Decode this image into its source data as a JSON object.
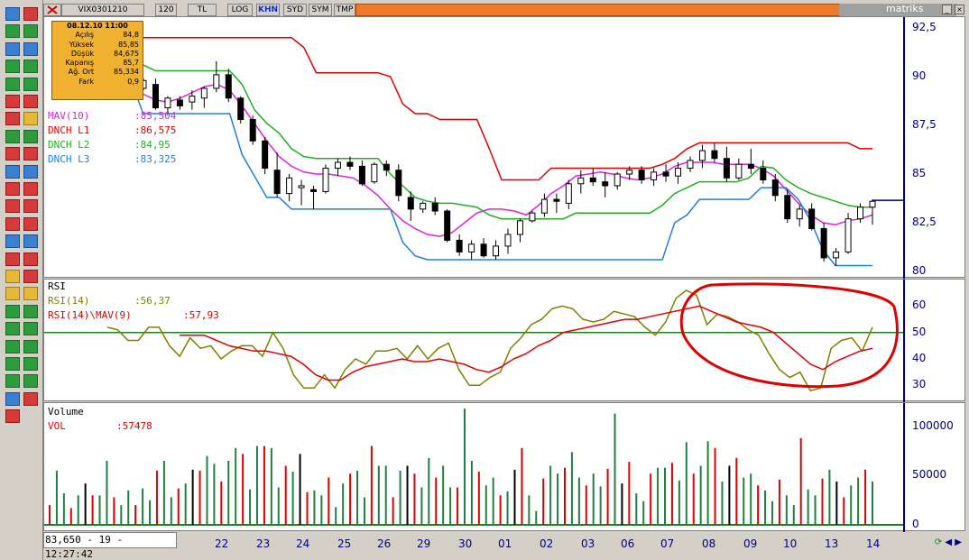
{
  "tabs": [
    {
      "label": "VIX0301210",
      "active": false
    },
    {
      "label": "120",
      "active": false
    },
    {
      "label": "TL",
      "active": false
    },
    {
      "label": "LOG",
      "active": false
    },
    {
      "label": "KHN",
      "active": true
    },
    {
      "label": "SYD",
      "active": false
    },
    {
      "label": "SYM",
      "active": false
    },
    {
      "label": "TMP",
      "active": false
    }
  ],
  "brand": "matriks",
  "info_box": {
    "datetime": "08.12.10 11:00",
    "rows": [
      {
        "label": "Açılış",
        "value": "84,8"
      },
      {
        "label": "Yüksek",
        "value": "85,85"
      },
      {
        "label": "Düşük",
        "value": "84,675"
      },
      {
        "label": "Kapanış",
        "value": "85,7"
      },
      {
        "label": "Ağ. Ort",
        "value": "85,334"
      },
      {
        "label": "Fark",
        "value": "0,9"
      }
    ]
  },
  "price_legend": [
    {
      "name": "MAV(10)",
      "value": ":85,504",
      "color": "#e020e0"
    },
    {
      "name": "DNCH L1",
      "value": ":86,575",
      "color": "#e00000"
    },
    {
      "name": "DNCH L2",
      "value": ":84,95",
      "color": "#20b020"
    },
    {
      "name": "DNCH L3",
      "value": ":83,325",
      "color": "#2080e0"
    }
  ],
  "price_axis": [
    "92,5",
    "90",
    "87,5",
    "85",
    "82,5",
    "80"
  ],
  "rsi_panel": {
    "title": "RSI",
    "legend": [
      {
        "name": "RSI(14)",
        "value": ":56,37",
        "color": "#808000"
      },
      {
        "name": "RSI(14)\\MAV(9)",
        "value": ":57,93",
        "color": "#e00000"
      }
    ],
    "axis": [
      "60",
      "50",
      "40",
      "30"
    ]
  },
  "volume_panel": {
    "title": "Volume",
    "legend": [
      {
        "name": "VOL",
        "value": ":57478",
        "color": "#e00000"
      }
    ],
    "axis": [
      "100000",
      "50000",
      "0"
    ]
  },
  "status_text": "83,650 - 19 - 12:27:42",
  "x_labels": [
    "22",
    "23",
    "24",
    "25",
    "26",
    "29",
    "30",
    "01",
    "02",
    "03",
    "06",
    "07",
    "08",
    "09",
    "10",
    "13",
    "14"
  ],
  "chart_data": [
    {
      "type": "candlestick",
      "title": "",
      "ylim": [
        80,
        93
      ],
      "series": [
        {
          "name": "MAV(10)",
          "values": [
            89.6,
            89.1,
            88.8,
            88.7,
            88.9,
            89.2,
            89.5,
            89.6,
            89.3,
            88.5,
            87.6,
            86.7,
            85.9,
            85.4,
            85.1,
            85.0,
            85.0,
            84.9,
            84.8,
            84.4,
            83.9,
            83.2,
            82.6,
            82.2,
            81.9,
            81.8,
            82.0,
            82.5,
            83.0,
            83.2,
            83.2,
            83.1,
            82.9,
            83.4,
            84.0,
            84.4,
            84.9,
            85.0,
            85.1,
            85.0,
            84.8,
            84.7,
            84.8,
            85.0,
            85.4,
            85.6,
            85.6,
            85.6,
            85.5,
            85.5,
            85.5,
            85.3,
            84.9,
            84.2,
            83.5,
            82.9,
            82.5,
            82.4,
            82.6,
            82.7,
            82.9
          ]
        },
        {
          "name": "DNCH L1",
          "values": [
            92.0,
            92.0,
            92.0,
            92.0,
            92.0,
            92.0,
            92.0,
            92.0,
            92.0,
            92.0,
            92.0,
            92.0,
            92.0,
            92.0,
            91.5,
            90.2,
            90.2,
            90.2,
            90.2,
            90.2,
            90.2,
            90.0,
            88.6,
            88.1,
            88.1,
            87.8,
            87.8,
            87.8,
            87.8,
            86.3,
            84.7,
            84.7,
            84.7,
            84.7,
            85.3,
            85.3,
            85.3,
            85.3,
            85.3,
            85.3,
            85.3,
            85.3,
            85.3,
            85.5,
            85.8,
            86.3,
            86.6,
            86.6,
            86.6,
            86.6,
            86.6,
            86.6,
            86.6,
            86.6,
            86.6,
            86.6,
            86.6,
            86.6,
            86.6,
            86.3,
            86.3
          ]
        },
        {
          "name": "DNCH L2",
          "values": [
            90.8,
            90.6,
            90.3,
            90.3,
            90.3,
            90.3,
            90.3,
            90.3,
            90.3,
            89.6,
            88.3,
            87.6,
            87.1,
            86.3,
            85.9,
            85.8,
            85.8,
            85.8,
            85.8,
            85.8,
            85.8,
            85.0,
            84.4,
            83.8,
            83.6,
            83.5,
            83.5,
            83.4,
            83.3,
            82.9,
            82.7,
            82.7,
            82.7,
            82.7,
            82.7,
            82.7,
            83.0,
            83.0,
            83.0,
            83.0,
            83.0,
            83.0,
            83.0,
            83.4,
            84.0,
            84.3,
            84.6,
            84.6,
            84.6,
            84.6,
            84.8,
            85.4,
            85.3,
            84.7,
            84.3,
            84.0,
            83.8,
            83.6,
            83.4,
            83.3,
            83.3
          ]
        },
        {
          "name": "DNCH L3",
          "values": [
            89.8,
            88.1,
            88.1,
            88.1,
            88.1,
            88.1,
            88.1,
            88.1,
            88.1,
            86.0,
            84.9,
            83.8,
            83.8,
            83.2,
            83.2,
            83.2,
            83.2,
            83.2,
            83.2,
            83.2,
            83.2,
            83.2,
            81.5,
            80.8,
            80.6,
            80.6,
            80.6,
            80.6,
            80.6,
            80.6,
            80.6,
            80.6,
            80.6,
            80.6,
            80.6,
            80.6,
            80.6,
            80.6,
            80.6,
            80.6,
            80.6,
            80.6,
            80.6,
            80.6,
            82.5,
            82.9,
            83.7,
            83.7,
            83.7,
            83.7,
            83.7,
            84.3,
            84.3,
            84.3,
            83.7,
            82.6,
            81.1,
            80.3,
            80.3,
            80.3,
            80.3
          ]
        }
      ],
      "candles": [
        [
          89.4,
          89.9,
          89.3,
          89.8
        ],
        [
          89.6,
          89.9,
          88.3,
          88.4
        ],
        [
          88.4,
          89.0,
          88.1,
          88.9
        ],
        [
          88.8,
          89.0,
          88.3,
          88.5
        ],
        [
          88.7,
          89.3,
          88.3,
          89.0
        ],
        [
          88.9,
          89.5,
          88.4,
          89.4
        ],
        [
          89.4,
          90.8,
          89.2,
          90.1
        ],
        [
          90.1,
          90.4,
          88.7,
          88.9
        ],
        [
          88.9,
          89.0,
          87.6,
          87.8
        ],
        [
          87.8,
          88.0,
          86.5,
          86.7
        ],
        [
          86.7,
          86.9,
          85.0,
          85.3
        ],
        [
          85.2,
          86.1,
          83.8,
          84.0
        ],
        [
          84.0,
          85.0,
          83.6,
          84.8
        ],
        [
          84.3,
          84.7,
          83.4,
          84.4
        ],
        [
          84.2,
          84.4,
          83.2,
          84.1
        ],
        [
          84.1,
          85.5,
          84.0,
          85.3
        ],
        [
          85.3,
          85.8,
          84.9,
          85.6
        ],
        [
          85.6,
          85.9,
          85.2,
          85.4
        ],
        [
          85.4,
          85.7,
          84.4,
          84.5
        ],
        [
          84.6,
          85.6,
          84.5,
          85.5
        ],
        [
          85.5,
          85.7,
          84.9,
          85.2
        ],
        [
          85.2,
          85.5,
          83.6,
          83.9
        ],
        [
          83.8,
          84.1,
          82.6,
          83.2
        ],
        [
          83.2,
          83.6,
          83.0,
          83.5
        ],
        [
          83.5,
          83.8,
          82.9,
          83.1
        ],
        [
          83.1,
          83.2,
          81.5,
          81.6
        ],
        [
          81.6,
          81.9,
          80.8,
          81.0
        ],
        [
          81.0,
          81.6,
          80.6,
          81.4
        ],
        [
          81.4,
          81.7,
          80.7,
          80.8
        ],
        [
          80.8,
          81.6,
          80.6,
          81.3
        ],
        [
          81.3,
          82.2,
          80.9,
          81.9
        ],
        [
          81.9,
          82.7,
          81.5,
          82.6
        ],
        [
          82.6,
          83.1,
          82.5,
          83.0
        ],
        [
          83.0,
          84.0,
          82.8,
          83.7
        ],
        [
          83.7,
          84.0,
          83.0,
          83.6
        ],
        [
          83.5,
          84.7,
          83.2,
          84.5
        ],
        [
          84.5,
          85.2,
          84.0,
          84.8
        ],
        [
          84.8,
          85.3,
          84.4,
          84.6
        ],
        [
          84.6,
          85.1,
          83.8,
          84.4
        ],
        [
          84.4,
          85.1,
          84.2,
          85.0
        ],
        [
          85.0,
          85.4,
          84.7,
          85.2
        ],
        [
          85.2,
          85.4,
          84.5,
          84.7
        ],
        [
          84.7,
          85.3,
          84.4,
          85.1
        ],
        [
          85.1,
          85.5,
          84.6,
          84.9
        ],
        [
          84.9,
          85.6,
          84.5,
          85.3
        ],
        [
          85.3,
          85.9,
          85.1,
          85.7
        ],
        [
          85.7,
          86.5,
          85.3,
          86.2
        ],
        [
          86.2,
          86.6,
          85.6,
          85.8
        ],
        [
          85.8,
          86.4,
          84.6,
          84.8
        ],
        [
          84.8,
          85.8,
          84.7,
          85.5
        ],
        [
          85.5,
          86.3,
          85.0,
          85.3
        ],
        [
          85.3,
          85.7,
          84.5,
          84.7
        ],
        [
          84.7,
          85.0,
          83.6,
          83.9
        ],
        [
          83.9,
          84.2,
          82.5,
          82.7
        ],
        [
          82.7,
          83.4,
          82.3,
          83.2
        ],
        [
          83.2,
          83.5,
          82.1,
          82.2
        ],
        [
          82.2,
          82.5,
          80.5,
          80.7
        ],
        [
          80.7,
          81.2,
          80.3,
          81.0
        ],
        [
          81.0,
          83.0,
          80.9,
          82.7
        ],
        [
          82.7,
          83.5,
          82.5,
          83.3
        ],
        [
          83.3,
          83.7,
          82.4,
          83.6
        ]
      ]
    },
    {
      "type": "line",
      "title": "RSI",
      "ylim": [
        25,
        67
      ],
      "series": [
        {
          "name": "RSI(14)",
          "values": [
            52,
            51,
            47,
            47,
            52,
            52,
            45,
            41,
            48,
            44,
            45,
            40,
            43,
            45,
            45,
            41,
            50,
            44,
            34,
            29,
            29,
            34,
            29,
            36,
            40,
            38,
            43,
            43,
            44,
            40,
            45,
            40,
            44,
            46,
            36,
            30,
            30,
            33,
            35,
            44,
            48,
            53,
            55,
            59,
            60,
            59,
            55,
            54,
            55,
            58,
            57,
            56,
            52,
            49,
            54,
            63,
            66,
            64,
            53,
            57,
            56,
            54,
            51,
            49,
            42,
            36,
            33,
            35,
            28,
            29,
            44,
            47,
            48,
            43,
            52
          ]
        },
        {
          "name": "RSI(14)\\MAV(9)",
          "values": [
            49,
            49,
            49,
            47,
            45,
            44,
            43,
            43,
            42,
            41,
            38,
            34,
            32,
            32,
            35,
            37,
            38,
            39,
            40,
            39,
            39,
            40,
            39,
            38,
            36,
            35,
            37,
            40,
            42,
            45,
            47,
            50,
            51,
            52,
            53,
            54,
            55,
            55,
            56,
            57,
            58,
            59,
            60,
            58,
            56,
            54,
            53,
            52,
            50,
            46,
            42,
            38,
            36,
            39,
            41,
            43,
            44
          ]
        }
      ],
      "reference_line": 50
    },
    {
      "type": "bar",
      "title": "Volume",
      "ylim": [
        0,
        120000
      ],
      "values": [
        20000,
        55000,
        32000,
        17000,
        30000,
        42000,
        30000,
        30000,
        65000,
        28000,
        20000,
        35000,
        20000,
        37000,
        25000,
        55000,
        65000,
        28000,
        37000,
        42000,
        56000,
        55000,
        70000,
        62000,
        44000,
        65000,
        78000,
        72000,
        36000,
        80000,
        80000,
        78000,
        38000,
        60000,
        54000,
        72000,
        33000,
        35000,
        30000,
        48000,
        18000,
        42000,
        52000,
        55000,
        28000,
        80000,
        60000,
        60000,
        28000,
        55000,
        60000,
        52000,
        38000,
        68000,
        48000,
        60000,
        38000,
        38000,
        118000,
        65000,
        54000,
        40000,
        48000,
        30000,
        34000,
        56000,
        78000,
        30000,
        14000,
        47000,
        60000,
        52000,
        58000,
        74000,
        48000,
        40000,
        52000,
        39000,
        57000,
        113000,
        42000,
        64000,
        32000,
        24000,
        52000,
        58000,
        58000,
        63000,
        45000,
        84000,
        52000,
        60000,
        85000,
        78000,
        44000,
        60000,
        68000,
        48000,
        52000,
        40000,
        35000,
        24000,
        46000,
        30000,
        20000,
        88000,
        36000,
        30000,
        47000,
        56000,
        44000,
        28000,
        40000,
        48000,
        56000,
        44000
      ]
    }
  ]
}
